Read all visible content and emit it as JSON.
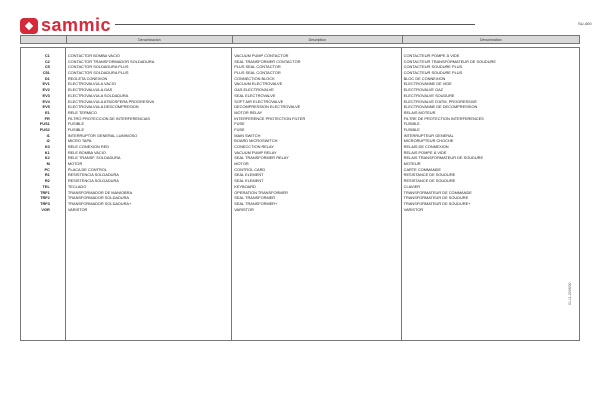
{
  "header": {
    "brand": "sammic",
    "doc_id": "SU-400",
    "brand_color": "#d62a3a"
  },
  "columns": [
    "",
    "Denominación",
    "Description",
    "Dénomination"
  ],
  "rows": [
    [
      "C1",
      "CONTACTOR BOMBA VACIO",
      "VACUUM PUMP CONTACTOR",
      "CONTACTEUR POMPE À VIDE"
    ],
    [
      "C2",
      "CONTACTOR TRANSFORMADOR SOLDADURA",
      "SEAL TRANSFORMER CONTACTOR",
      "CONTACTEUR TRANSFORMATEUR DE SOUDURE"
    ],
    [
      "C5",
      "CONTACTOR SOLDADURA PLUS",
      "PLUS SEAL CONTACTOR",
      "CONTACTEUR SOUDURE PLUS"
    ],
    [
      "C51",
      "CONTACTOR SOLDADURA PLUS",
      "PLUS SEAL CONTACTOR",
      "CONTACTEUR SOUDURE PLUS"
    ],
    [
      "D1",
      "REGLETA CONEXION",
      "CONNECTION BLOCK",
      "BLOC DE CONNEXION"
    ],
    [
      "EV1",
      "ELECTROVALVULA VACIO",
      "VACUUM ELECTROVALVE",
      "ELECTROVANNE DE VIDE"
    ],
    [
      "EV2",
      "ELECTROVALVULA GAS",
      "GAS ELECTROVALVE",
      "ELECTROVALVE GAZ"
    ],
    [
      "EV3",
      "ELECTROVALVULA SOLDADURA",
      "SEAL ELECTROVALVE",
      "ELECTROVALVE SOUDURE"
    ],
    [
      "EV4",
      "ELECTROVALVULA ATMOSFERA PROGRESIVA",
      "SOFT AIR ELECTROVALVE",
      "ELECTROVALVE D'ATM. PROGRESSIVE"
    ],
    [
      "EV5",
      "ELECTROVALVULA DESCOMPRESION",
      "DECOMPRESSION ELECTROVALVE",
      "ELECTROVANNE DE DECOMPRESSION"
    ],
    [
      "E1",
      "RELE TERMICO",
      "MOTOR RELAY",
      "RELAIS MOTEUR"
    ],
    [
      "FR",
      "FILTRO PROTECCION DE INTERFERENCIAS",
      "INTERFERENCE PROTECTION FILTER",
      "FILTRE DE PROTECTION INTERFERENCES"
    ],
    [
      "FUS1",
      "FUSIBLE",
      "FUSE",
      "FUSIBLE"
    ],
    [
      "FUS2",
      "FUSIBLE",
      "FUSE",
      "FUSIBLE"
    ],
    [
      "I1",
      "INTERRUPTOR GENERAL LUMINOSO",
      "MAIN SWITCH",
      "INTERRUPTEUR GENERAL"
    ],
    [
      "I2",
      "MICRO TAPA",
      "BOARD MICROSWITCH",
      "MICRORUPTEUR CHOCHE"
    ],
    [
      "K0",
      "RELE CONEXION RED",
      "CONECCTION RELAY",
      "RELAIS DE CONNEXION"
    ],
    [
      "K1",
      "RELE BOMBA VACIO",
      "VACUUM PUMP RELAY",
      "RELAIS POMPE À VIDE"
    ],
    [
      "K2",
      "RELE TRANSF. SOLDADURA",
      "SEAL TRANSFORMER RELAY",
      "RELAIS TRANSFORMATEUR DE SOUDURE"
    ],
    [
      "M",
      "MOTOR",
      "MOTOR",
      "MOTEUR"
    ],
    [
      "PC",
      "PLACA DE CONTROL",
      "CONTROL CARD",
      "CARTE COMMANDE"
    ],
    [
      "R1",
      "RESISTENCIA SOLDADURA",
      "SEAL ELEMENT",
      "RESISTANCE DE SOUDURE"
    ],
    [
      "R2",
      "RESISTENCIA SOLDADURA",
      "SEAL ELEMENT",
      "RESISTANCE DE SOUDURE"
    ],
    [
      "TEL",
      "TECLADO",
      "KEYBOARD",
      "CLAVIER"
    ],
    [
      "TRF1",
      "TRANSFORMADOR DE MANIOBRA",
      "OPERATION TRANSFORMER",
      "TRANSFORMATEUR DE COMMANDE"
    ],
    [
      "TRF2",
      "TRANSFORMADOR SOLDADURA",
      "SEAL TRANSFORMER",
      "TRANSFORMATEUR DE SOUDURE"
    ],
    [
      "TRF3",
      "TRANSFORMADOR SOLDADURA+",
      "SEAL TRANSFORMER+",
      "TRANSFORMATEUR DE SOUDURE+"
    ],
    [
      "VGR",
      "VARISTOR",
      "VARISTOR",
      "VARISTOR"
    ]
  ],
  "revision": "01-11-2006/00"
}
